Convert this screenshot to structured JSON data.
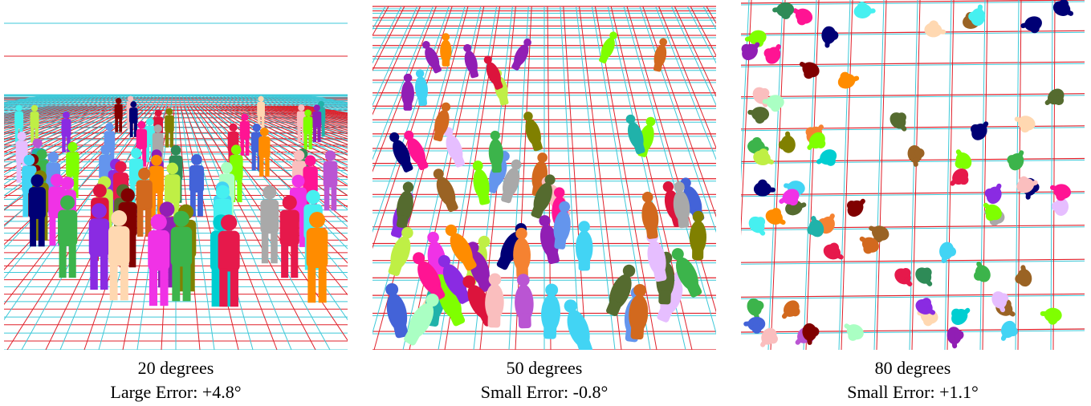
{
  "panels": [
    {
      "angle_label": "20 degrees",
      "error_label": "Large Error: +4.8°",
      "colors": {
        "grid_red": "#e0202a",
        "grid_cyan": "#3cc8d8"
      }
    },
    {
      "angle_label": "50 degrees",
      "error_label": "Small Error: -0.8°",
      "colors": {
        "grid_red": "#e0202a",
        "grid_cyan": "#3cc8d8"
      }
    },
    {
      "angle_label": "80 degrees",
      "error_label": "Small Error: +1.1°",
      "colors": {
        "grid_red": "#e0202a",
        "grid_cyan": "#3cc8d8"
      }
    }
  ],
  "figure_colors": [
    "#8a2be2",
    "#3cb44b",
    "#f58231",
    "#4363d8",
    "#e6194b",
    "#bfef45",
    "#f032e6",
    "#911eb4",
    "#42d4f4",
    "#9a6324",
    "#800000",
    "#aaffc3",
    "#808000",
    "#ffd8b1",
    "#000075",
    "#a9a9a9",
    "#46f0f0",
    "#fabebe",
    "#e6beff",
    "#7fff00",
    "#ff1493",
    "#2e8b57",
    "#d2691e",
    "#6495ed",
    "#00ced1",
    "#ff8c00",
    "#ba55d3",
    "#556b2f",
    "#dc143c",
    "#20b2aa"
  ]
}
